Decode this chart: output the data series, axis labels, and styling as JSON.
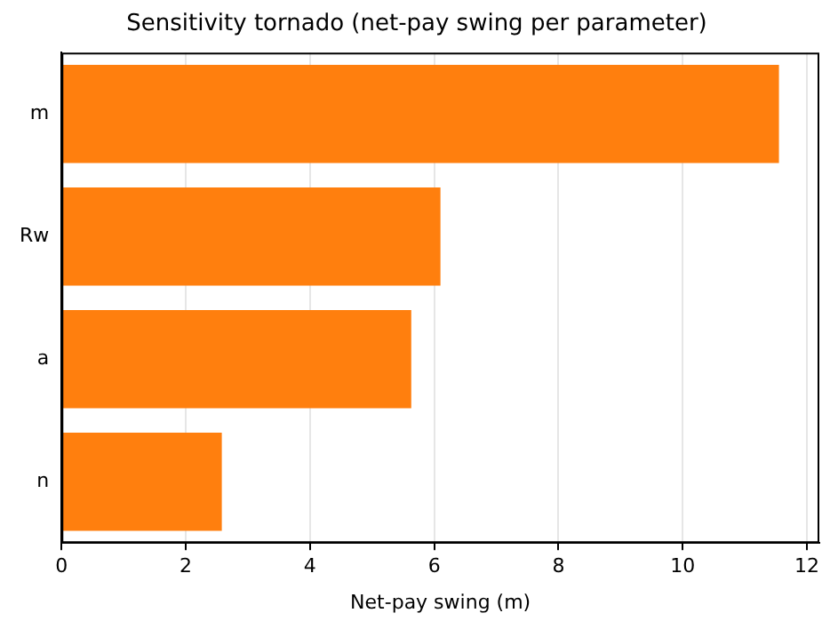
{
  "chart_data": {
    "type": "bar",
    "orientation": "horizontal",
    "title": "Sensitivity tornado (net-pay swing per parameter)",
    "xlabel": "Net-pay swing (m)",
    "categories": [
      "m",
      "Rw",
      "a",
      "n"
    ],
    "values": [
      11.55,
      6.1,
      5.63,
      2.58
    ],
    "color": "#ff7f0e",
    "xlim": [
      0,
      12.2
    ],
    "xticks": [
      0,
      2,
      4,
      6,
      8,
      10,
      12
    ],
    "grid": "x",
    "legend": false
  }
}
